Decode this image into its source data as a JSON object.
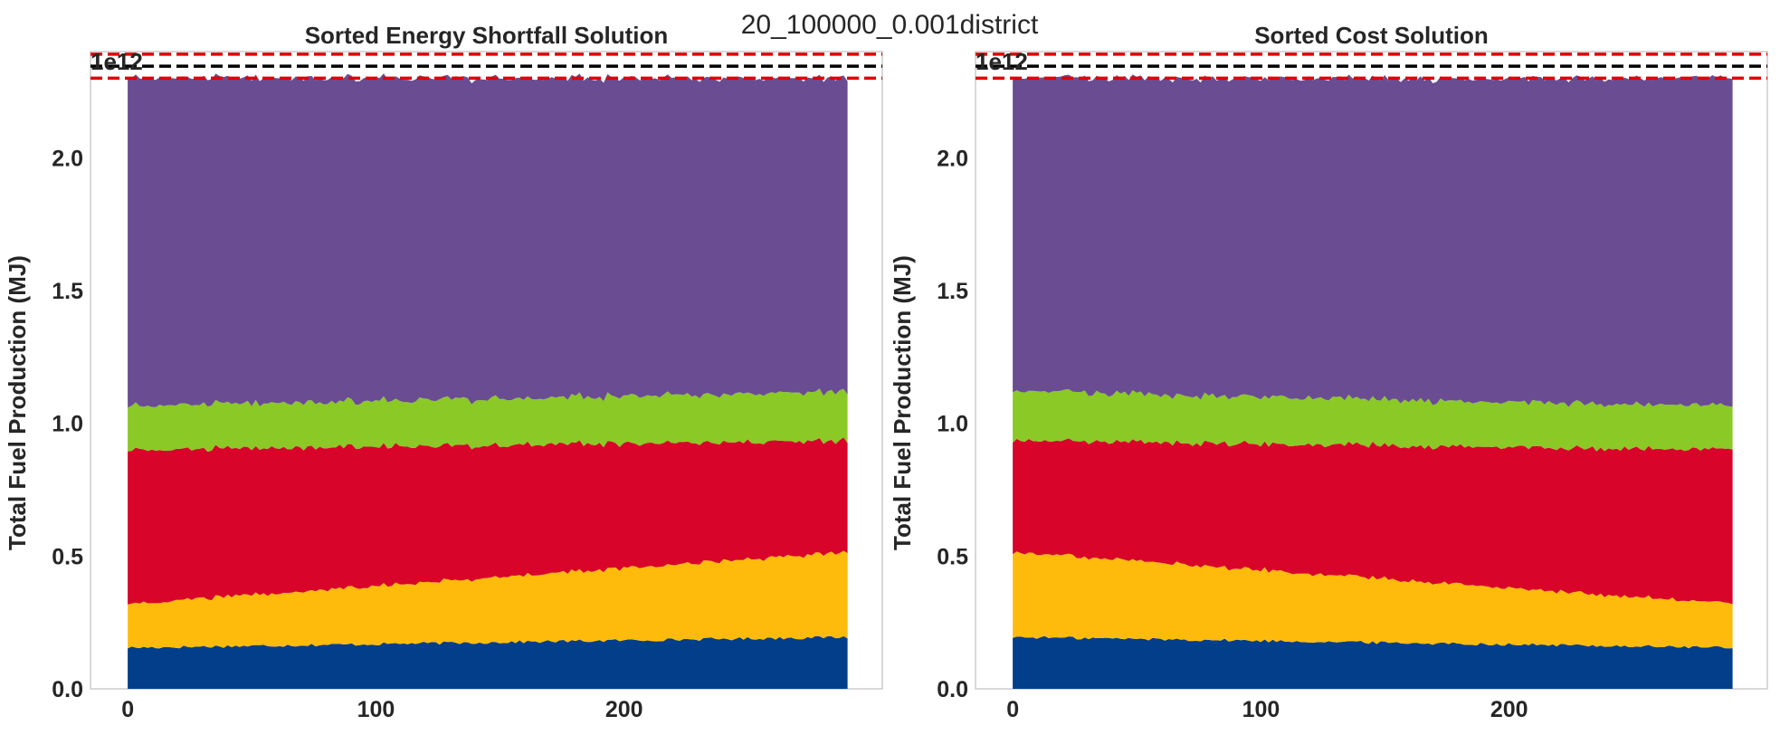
{
  "figure": {
    "suptitle": "20_100000_0.001district"
  },
  "chart_data": [
    {
      "type": "area",
      "stacked": true,
      "title": "Sorted Energy Shortfall Solution",
      "ylabel": "Total Fuel Production (MJ)",
      "xlabel": "",
      "y_offset_label": "1e12",
      "x_ticks": [
        "0",
        "100",
        "200"
      ],
      "y_ticks": [
        "0.0",
        "0.5",
        "1.0",
        "1.5",
        "2.0"
      ],
      "xlim": [
        -15,
        304
      ],
      "ylim": [
        0,
        2.4
      ],
      "grid": false,
      "x": [
        0,
        290
      ],
      "series": [
        {
          "color": "#023e8a",
          "values": [
            0.155,
            0.195
          ]
        },
        {
          "color": "#ffbb0b",
          "values": [
            0.165,
            0.32
          ]
        },
        {
          "color": "#d90429",
          "values": [
            0.58,
            0.42
          ]
        },
        {
          "color": "#8ac926",
          "values": [
            0.165,
            0.185
          ]
        },
        {
          "color": "#6a4c93",
          "values": [
            1.235,
            1.18
          ]
        }
      ],
      "reference_lines": [
        {
          "y": 2.39,
          "color": "#e00000",
          "style": "dashed"
        },
        {
          "y": 2.345,
          "color": "#000000",
          "style": "dashed"
        },
        {
          "y": 2.3,
          "color": "#e00000",
          "style": "dashed"
        }
      ]
    },
    {
      "type": "area",
      "stacked": true,
      "title": "Sorted Cost Solution",
      "ylabel": "Total Fuel Production (MJ)",
      "xlabel": "",
      "y_offset_label": "1e12",
      "x_ticks": [
        "0",
        "100",
        "200"
      ],
      "y_ticks": [
        "0.0",
        "0.5",
        "1.0",
        "1.5",
        "2.0"
      ],
      "xlim": [
        -15,
        304
      ],
      "ylim": [
        0,
        2.4
      ],
      "grid": false,
      "x": [
        0,
        290
      ],
      "series": [
        {
          "color": "#023e8a",
          "values": [
            0.195,
            0.155
          ]
        },
        {
          "color": "#ffbb0b",
          "values": [
            0.32,
            0.165
          ]
        },
        {
          "color": "#d90429",
          "values": [
            0.42,
            0.58
          ]
        },
        {
          "color": "#8ac926",
          "values": [
            0.185,
            0.165
          ]
        },
        {
          "color": "#6a4c93",
          "values": [
            1.18,
            1.235
          ]
        }
      ],
      "reference_lines": [
        {
          "y": 2.39,
          "color": "#e00000",
          "style": "dashed"
        },
        {
          "y": 2.345,
          "color": "#000000",
          "style": "dashed"
        },
        {
          "y": 2.3,
          "color": "#e00000",
          "style": "dashed"
        }
      ]
    }
  ]
}
